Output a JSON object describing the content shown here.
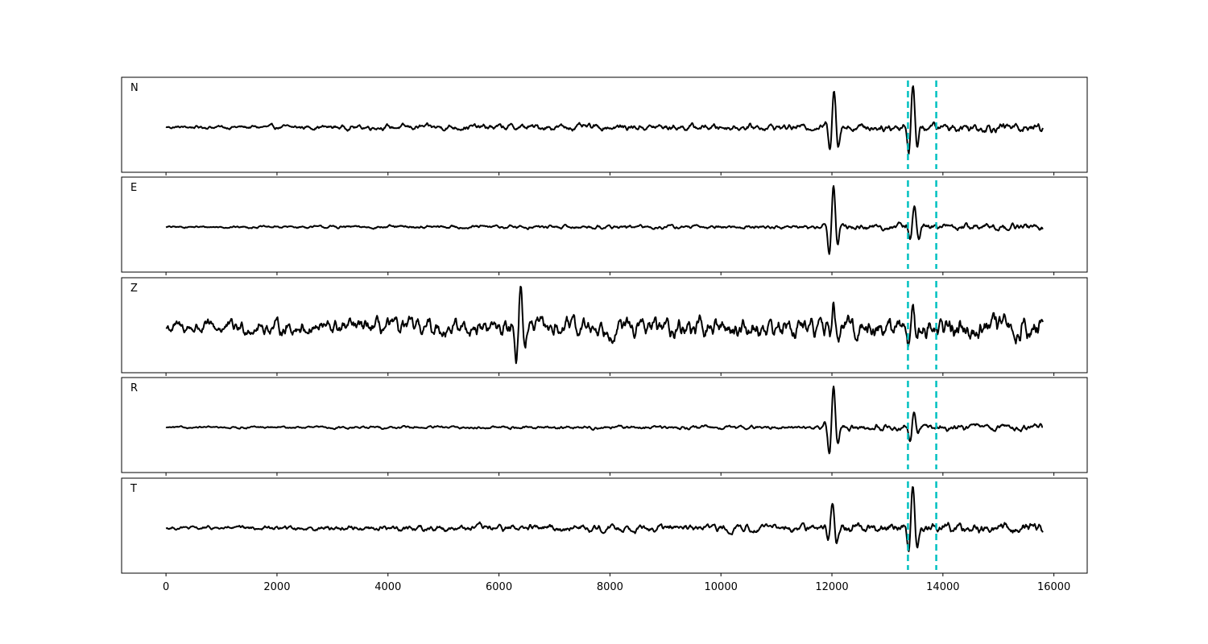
{
  "chart_data": {
    "type": "line",
    "layout": "stacked-panels",
    "x_range": [
      -800,
      16600
    ],
    "x_ticks": [
      0,
      2000,
      4000,
      6000,
      8000,
      10000,
      12000,
      14000,
      16000
    ],
    "x_tick_labels": [
      "0",
      "2000",
      "4000",
      "6000",
      "8000",
      "10000",
      "12000",
      "14000",
      "16000"
    ],
    "trace_x_range": [
      0,
      15800
    ],
    "trace_color": "#000000",
    "marker_color": "#00c0c0",
    "vertical_markers": [
      13370,
      13880
    ],
    "y_ticks": "hidden",
    "panels": [
      {
        "label": "N",
        "noise": [
          [
            0,
            0.05
          ],
          [
            6000,
            0.1
          ],
          [
            11800,
            0.1
          ],
          [
            12100,
            0.12
          ],
          [
            15800,
            0.16
          ]
        ],
        "events": [
          {
            "x": 12030,
            "amp": 0.95
          },
          {
            "x": 13450,
            "amp": 1.0
          }
        ]
      },
      {
        "label": "E",
        "noise": [
          [
            0,
            0.03
          ],
          [
            6000,
            0.06
          ],
          [
            11800,
            0.06
          ],
          [
            12100,
            0.1
          ],
          [
            15800,
            0.12
          ]
        ],
        "events": [
          {
            "x": 12020,
            "amp": 1.0
          },
          {
            "x": 13480,
            "amp": 0.55
          }
        ]
      },
      {
        "label": "Z",
        "noise": [
          [
            0,
            0.18
          ],
          [
            6000,
            0.25
          ],
          [
            11800,
            0.28
          ],
          [
            15800,
            0.32
          ]
        ],
        "events": [
          {
            "x": 6380,
            "amp": 0.85
          },
          {
            "x": 12020,
            "amp": 0.45
          },
          {
            "x": 13450,
            "amp": 0.45
          }
        ]
      },
      {
        "label": "R",
        "noise": [
          [
            0,
            0.03
          ],
          [
            6000,
            0.05
          ],
          [
            11800,
            0.06
          ],
          [
            12100,
            0.1
          ],
          [
            15800,
            0.1
          ]
        ],
        "events": [
          {
            "x": 12020,
            "amp": 1.0
          },
          {
            "x": 13470,
            "amp": 0.45
          }
        ]
      },
      {
        "label": "T",
        "noise": [
          [
            0,
            0.05
          ],
          [
            6000,
            0.12
          ],
          [
            11800,
            0.12
          ],
          [
            12100,
            0.15
          ],
          [
            15800,
            0.18
          ]
        ],
        "events": [
          {
            "x": 12000,
            "amp": 0.6
          },
          {
            "x": 13450,
            "amp": 1.0
          }
        ]
      }
    ]
  }
}
